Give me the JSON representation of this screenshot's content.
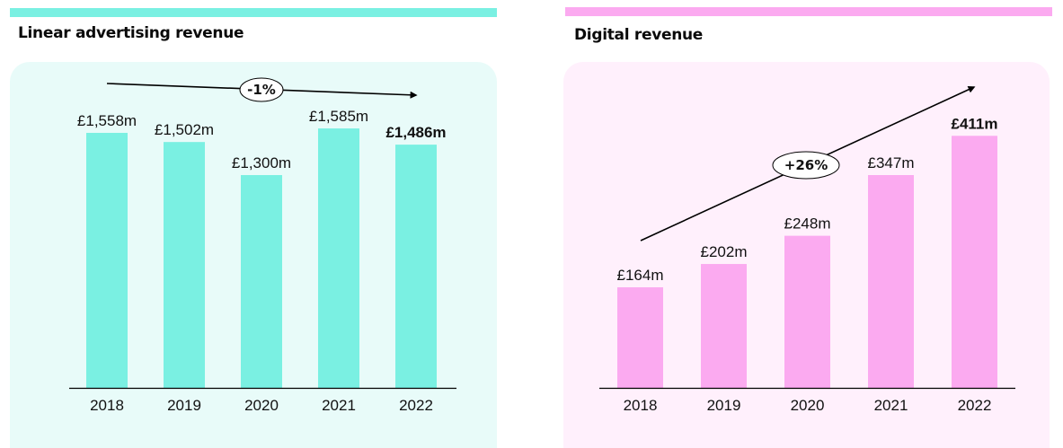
{
  "colors": {
    "linear_accent": "#7af0e2",
    "linear_panel": "#e8fbf9",
    "digital_accent": "#fbaaf0",
    "digital_panel": "#fff0fc",
    "axis": "#000000",
    "text": "#111111"
  },
  "chart_data": [
    {
      "type": "bar",
      "title": "Linear advertising revenue",
      "categories": [
        "2018",
        "2019",
        "2020",
        "2021",
        "2022"
      ],
      "values": [
        1558,
        1502,
        1300,
        1585,
        1486
      ],
      "labels": [
        "£1,558m",
        "£1,502m",
        "£1,300m",
        "£1,585m",
        "£1,486m"
      ],
      "highlight_index": 4,
      "unit": "£m",
      "xlabel": "",
      "ylabel": "",
      "ylim": [
        0,
        1600
      ],
      "grid": false,
      "trend": {
        "label": "-1%",
        "direction": "down"
      }
    },
    {
      "type": "bar",
      "title": "Digital revenue",
      "categories": [
        "2018",
        "2019",
        "2020",
        "2021",
        "2022"
      ],
      "values": [
        164,
        202,
        248,
        347,
        411
      ],
      "labels": [
        "£164m",
        "£202m",
        "£248m",
        "£347m",
        "£411m"
      ],
      "highlight_index": 4,
      "unit": "£m",
      "xlabel": "",
      "ylabel": "",
      "ylim": [
        0,
        420
      ],
      "grid": false,
      "trend": {
        "label": "+26%",
        "direction": "up"
      }
    }
  ]
}
